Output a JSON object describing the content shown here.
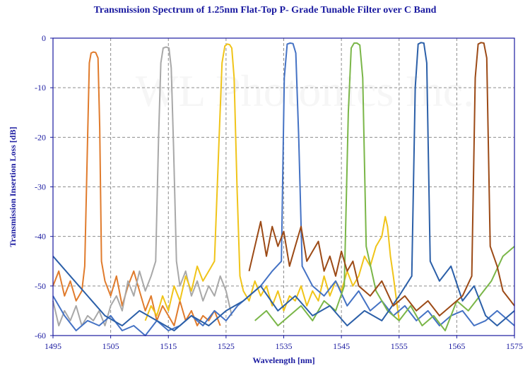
{
  "chart_data": {
    "type": "line",
    "title": "Transmission Spectrum of 1.25nm Flat-Top P- Grade Tunable Filter over C Band",
    "xlabel": "Wavelength [nm]",
    "ylabel": "Transmission Insertion Loss [dB]",
    "watermark": "WL Photonics Inc.",
    "xlim": [
      1495,
      1575
    ],
    "ylim": [
      -60,
      0
    ],
    "x_ticks": [
      1495,
      1505,
      1515,
      1525,
      1535,
      1545,
      1555,
      1565,
      1575
    ],
    "y_ticks": [
      0,
      -10,
      -20,
      -30,
      -40,
      -50,
      -60
    ],
    "grid": "dashed-both",
    "legend": "none",
    "colors": {
      "axis": "#1a1aa0",
      "grid": "#8c8c8c"
    },
    "series": [
      {
        "color": "#e07b2c",
        "peak_center_nm": 1502.2,
        "peak_db": -2.8,
        "x": [
          1495,
          1496,
          1497,
          1498,
          1499,
          1500,
          1500.5,
          1501,
          1501.3,
          1501.6,
          1502,
          1502.4,
          1502.8,
          1503.1,
          1503.4,
          1504,
          1505,
          1506,
          1507,
          1508,
          1509,
          1510,
          1511,
          1512,
          1513,
          1514,
          1515,
          1516,
          1517,
          1518,
          1519,
          1520,
          1521,
          1522,
          1523,
          1524
        ],
        "y": [
          -50,
          -47,
          -52,
          -49,
          -53,
          -51,
          -46,
          -20,
          -5,
          -3,
          -2.8,
          -2.9,
          -4,
          -18,
          -45,
          -49,
          -52,
          -48,
          -54,
          -50,
          -47,
          -51,
          -55,
          -52,
          -57,
          -54,
          -56,
          -58,
          -53,
          -57,
          -55,
          -58,
          -56,
          -57,
          -55,
          -58
        ]
      },
      {
        "color": "#a8a8a8",
        "peak_center_nm": 1514.6,
        "peak_db": -1.8,
        "x": [
          1495,
          1496,
          1497,
          1498,
          1499,
          1500,
          1501,
          1502,
          1503,
          1504,
          1505,
          1506,
          1507,
          1508,
          1509,
          1510,
          1511,
          1512,
          1512.8,
          1513.3,
          1513.7,
          1514.1,
          1514.6,
          1515.1,
          1515.5,
          1515.9,
          1516.4,
          1517,
          1518,
          1519,
          1520,
          1521,
          1522,
          1523,
          1524,
          1525,
          1526
        ],
        "y": [
          -53,
          -58,
          -55,
          -57,
          -54,
          -58,
          -56,
          -57,
          -55,
          -58,
          -54,
          -52,
          -55,
          -49,
          -52,
          -47,
          -51,
          -48,
          -45,
          -20,
          -5,
          -2,
          -1.8,
          -2,
          -6,
          -22,
          -45,
          -50,
          -47,
          -52,
          -49,
          -53,
          -50,
          -52,
          -48,
          -51,
          -56
        ]
      },
      {
        "color": "#f0c419",
        "peak_center_nm": 1525.5,
        "peak_db": -1.2,
        "x": [
          1511,
          1512,
          1513,
          1514,
          1515,
          1516,
          1517,
          1518,
          1519,
          1520,
          1521,
          1522,
          1523,
          1523.8,
          1524.3,
          1524.8,
          1525.2,
          1525.6,
          1526,
          1526.4,
          1526.9,
          1527.4,
          1528,
          1529,
          1530,
          1531,
          1532,
          1533,
          1534,
          1535,
          1536,
          1537,
          1538,
          1539,
          1540,
          1541,
          1542,
          1543,
          1544,
          1545,
          1546,
          1547,
          1548,
          1549,
          1550,
          1551,
          1552,
          1552.6,
          1553,
          1553.5,
          1554,
          1555
        ],
        "y": [
          -57,
          -54,
          -56,
          -52,
          -55,
          -50,
          -53,
          -48,
          -51,
          -46,
          -49,
          -47,
          -45,
          -20,
          -5,
          -1.6,
          -1.2,
          -1.3,
          -2,
          -8,
          -30,
          -48,
          -51,
          -53,
          -49,
          -52,
          -50,
          -54,
          -51,
          -55,
          -52,
          -53,
          -50,
          -54,
          -51,
          -53,
          -48,
          -52,
          -49,
          -51,
          -47,
          -50,
          -48,
          -44,
          -46,
          -42,
          -40,
          -36,
          -38,
          -44,
          -48,
          -57
        ]
      },
      {
        "color": "#4472c4",
        "peak_center_nm": 1536.2,
        "peak_db": -1.0,
        "x": [
          1495,
          1497,
          1499,
          1501,
          1503,
          1505,
          1507,
          1509,
          1511,
          1513,
          1515,
          1517,
          1519,
          1521,
          1523,
          1525,
          1527,
          1529,
          1531,
          1533,
          1534.6,
          1535.1,
          1535.6,
          1536.1,
          1536.6,
          1537.1,
          1537.6,
          1538.2,
          1540,
          1542,
          1544,
          1546,
          1548,
          1550,
          1552,
          1554,
          1556,
          1558,
          1560,
          1562,
          1564,
          1566,
          1568,
          1570,
          1572,
          1575
        ],
        "y": [
          -52,
          -56,
          -59,
          -57,
          -58,
          -56,
          -59,
          -58,
          -60,
          -57,
          -59,
          -58,
          -56,
          -58,
          -55,
          -57,
          -54,
          -52,
          -50,
          -47,
          -45,
          -8,
          -1.2,
          -1,
          -1.1,
          -3,
          -20,
          -46,
          -50,
          -52,
          -49,
          -54,
          -51,
          -55,
          -53,
          -56,
          -54,
          -57,
          -55,
          -58,
          -56,
          -55,
          -58,
          -57,
          -55,
          -58
        ]
      },
      {
        "color": "#7ab648",
        "peak_center_nm": 1547.3,
        "peak_db": -1.0,
        "x": [
          1530,
          1532,
          1534,
          1536,
          1538,
          1540,
          1542,
          1544,
          1545.5,
          1546.2,
          1546.7,
          1547.2,
          1547.7,
          1548.2,
          1548.7,
          1549.3,
          1551,
          1553,
          1555,
          1557,
          1559,
          1561,
          1563,
          1565,
          1567,
          1569,
          1571,
          1573,
          1575
        ],
        "y": [
          -57,
          -55,
          -58,
          -56,
          -54,
          -57,
          -53,
          -55,
          -50,
          -15,
          -2,
          -1,
          -1,
          -1.4,
          -8,
          -42,
          -51,
          -55,
          -57,
          -54,
          -58,
          -56,
          -59,
          -53,
          -55,
          -52,
          -49,
          -44,
          -42
        ]
      },
      {
        "color": "#2b5fa8",
        "peak_center_nm": 1558.8,
        "peak_db": -0.9,
        "x": [
          1495,
          1498,
          1501,
          1504,
          1507,
          1510,
          1513,
          1516,
          1519,
          1522,
          1525,
          1528,
          1531,
          1534,
          1537,
          1540,
          1543,
          1546,
          1549,
          1552,
          1555,
          1557.2,
          1557.8,
          1558.3,
          1558.8,
          1559.3,
          1559.8,
          1560.4,
          1562,
          1564,
          1566,
          1568,
          1570,
          1572,
          1575
        ],
        "y": [
          -44,
          -48,
          -52,
          -56,
          -58,
          -55,
          -57,
          -59,
          -56,
          -58,
          -55,
          -53,
          -50,
          -55,
          -52,
          -56,
          -54,
          -58,
          -55,
          -57,
          -52,
          -48,
          -10,
          -1.2,
          -0.9,
          -1,
          -5,
          -45,
          -49,
          -46,
          -53,
          -50,
          -56,
          -58,
          -55
        ]
      },
      {
        "color": "#9c4a16",
        "peak_center_nm": 1569.3,
        "peak_db": -0.9,
        "x": [
          1529,
          1530,
          1531,
          1532,
          1533,
          1534,
          1535,
          1536,
          1537,
          1538,
          1539,
          1540,
          1541,
          1542,
          1543,
          1544,
          1545,
          1546,
          1547,
          1548,
          1550,
          1552,
          1554,
          1556,
          1558,
          1560,
          1562,
          1564,
          1566,
          1567.6,
          1568.2,
          1568.7,
          1569.2,
          1569.7,
          1570.2,
          1570.8,
          1572,
          1573,
          1575
        ],
        "y": [
          -47,
          -42,
          -37,
          -44,
          -38,
          -42,
          -39,
          -46,
          -42,
          -38,
          -45,
          -43,
          -41,
          -47,
          -44,
          -48,
          -43,
          -47,
          -45,
          -50,
          -52,
          -49,
          -54,
          -52,
          -55,
          -53,
          -56,
          -54,
          -52,
          -48,
          -8,
          -1.2,
          -0.9,
          -1,
          -4,
          -42,
          -46,
          -51,
          -54
        ]
      }
    ]
  }
}
